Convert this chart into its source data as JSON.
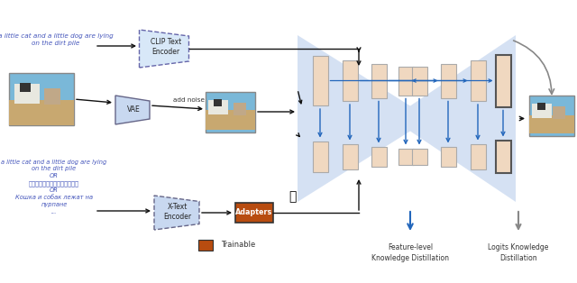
{
  "bg_color": "#ffffff",
  "clip_label": "CLIP Text\nEncoder",
  "vae_label": "VAE",
  "add_noise_text": "add noise",
  "xtext_encoder_label": "X-Text\nEncoder",
  "adapters_label": "Adapters",
  "trainable_color": "#b84c10",
  "trainable_label": "Trainable",
  "unet_bg_color": "#c8d8f0",
  "block_fill": "#f0d8c0",
  "block_edge": "#999999",
  "arrow_color": "#111111",
  "blue_arrow_color": "#2266bb",
  "gray_arrow_color": "#888888",
  "feature_distill_text": "Feature-level\nKnowledge Distillation",
  "logits_distill_text": "Logits Knowledge\nDistillation",
  "top_text": "a little cat and a little dog are lying\non the dirt pile",
  "bottom_text": "a little cat and a little dog are lying\non the dirt pile\nOR\n一只小猫和一只小狗趣在地板上\nOR\nКошка и собак лежат на\nпурпане\n..."
}
